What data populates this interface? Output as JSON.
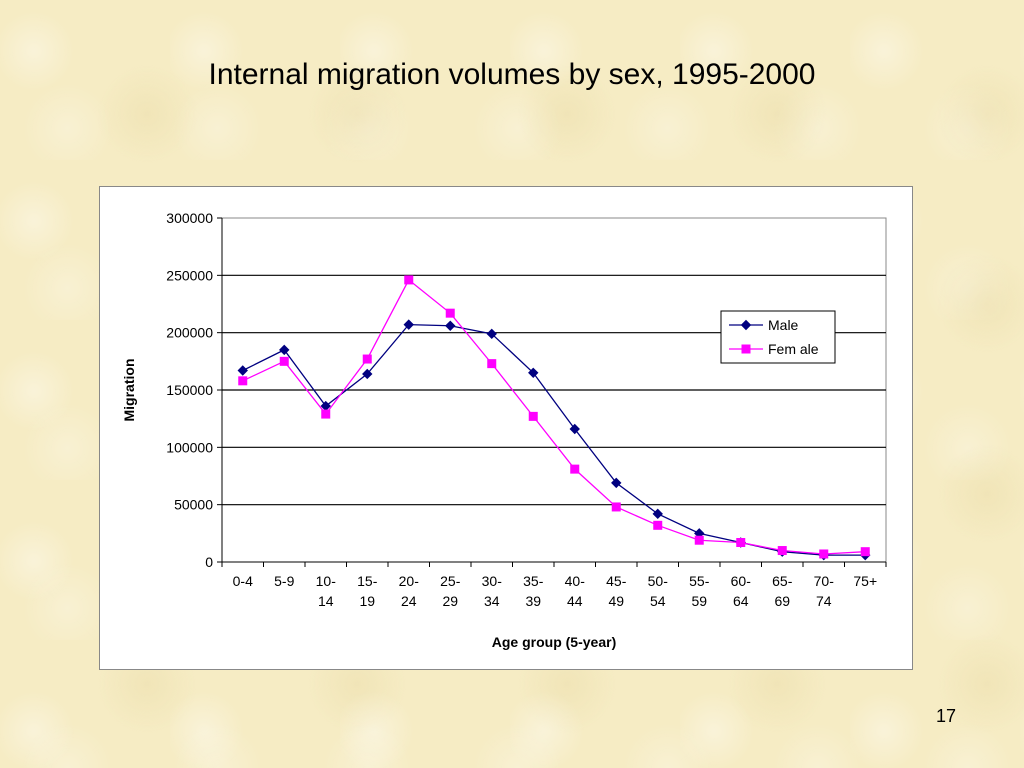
{
  "slide": {
    "title": "Internal migration volumes by sex, 1995-2000",
    "page_number": "17"
  },
  "chart_data": {
    "type": "line",
    "title": "",
    "xlabel": "Age group (5-year)",
    "ylabel": "Migration",
    "ylim": [
      0,
      300000
    ],
    "yticks": [
      0,
      50000,
      100000,
      150000,
      200000,
      250000,
      300000
    ],
    "grid": true,
    "legend_position": "upper-right",
    "categories": [
      [
        "0-4"
      ],
      [
        "5-9"
      ],
      [
        "10-",
        "14"
      ],
      [
        "15-",
        "19"
      ],
      [
        "20-",
        "24"
      ],
      [
        "25-",
        "29"
      ],
      [
        "30-",
        "34"
      ],
      [
        "35-",
        "39"
      ],
      [
        "40-",
        "44"
      ],
      [
        "45-",
        "49"
      ],
      [
        "50-",
        "54"
      ],
      [
        "55-",
        "59"
      ],
      [
        "60-",
        "64"
      ],
      [
        "65-",
        "69"
      ],
      [
        "70-",
        "74"
      ],
      [
        "75+"
      ]
    ],
    "series": [
      {
        "name": "Male",
        "color": "#000080",
        "marker": "diamond",
        "values": [
          167000,
          185000,
          136000,
          164000,
          207000,
          206000,
          199000,
          165000,
          116000,
          69000,
          42000,
          25000,
          17000,
          9000,
          6000,
          6000
        ]
      },
      {
        "name": "Fem ale",
        "color": "#ff00ff",
        "marker": "square",
        "values": [
          158000,
          175000,
          129000,
          177000,
          246000,
          217000,
          173000,
          127000,
          81000,
          48000,
          32000,
          19000,
          17000,
          10000,
          7000,
          9000
        ]
      }
    ]
  }
}
